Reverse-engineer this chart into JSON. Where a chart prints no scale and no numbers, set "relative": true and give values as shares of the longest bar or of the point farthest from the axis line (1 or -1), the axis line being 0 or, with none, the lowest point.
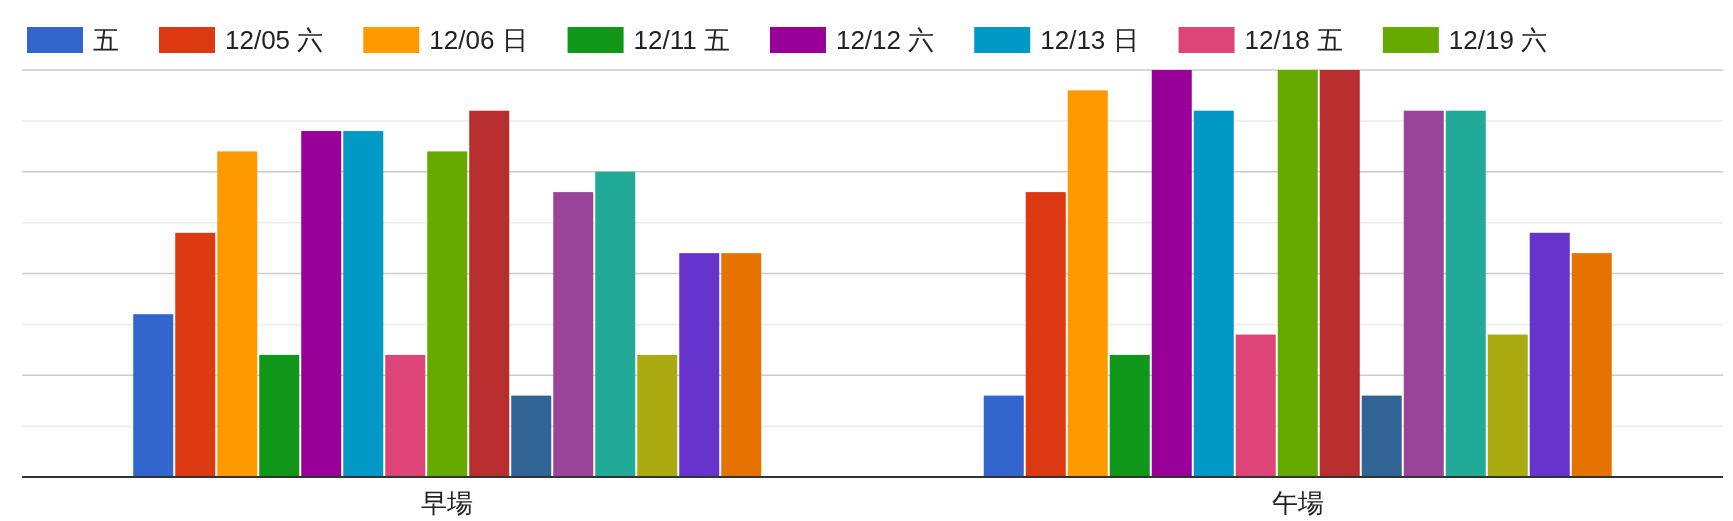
{
  "chart_data": {
    "type": "bar",
    "relative": true,
    "grid": true,
    "legend": "top",
    "categories": [
      "早場",
      "午場"
    ],
    "series": [
      {
        "name": "五",
        "color": "#3366cc",
        "values": [
          0.4,
          0.2
        ]
      },
      {
        "name": "12/05 六",
        "color": "#dc3912",
        "values": [
          0.6,
          0.7
        ]
      },
      {
        "name": "12/06 日",
        "color": "#ff9900",
        "values": [
          0.8,
          0.95
        ]
      },
      {
        "name": "12/11 五",
        "color": "#109618",
        "values": [
          0.3,
          0.3
        ]
      },
      {
        "name": "12/12 六",
        "color": "#990099",
        "values": [
          0.85,
          1
        ]
      },
      {
        "name": "12/13 日",
        "color": "#0099c6",
        "values": [
          0.85,
          0.9
        ]
      },
      {
        "name": "12/18 五",
        "color": "#dd4477",
        "values": [
          0.3,
          0.35
        ]
      },
      {
        "name": "12/19 六",
        "color": "#66aa00",
        "values": [
          0.8,
          1
        ]
      },
      {
        "color": "#b82e2e",
        "values": [
          0.9,
          1
        ]
      },
      {
        "color": "#316395",
        "values": [
          0.2,
          0.2
        ]
      },
      {
        "color": "#994499",
        "values": [
          0.7,
          0.9
        ]
      },
      {
        "color": "#22aa99",
        "values": [
          0.75,
          0.9
        ]
      },
      {
        "color": "#aaaa11",
        "values": [
          0.3,
          0.35
        ]
      },
      {
        "color": "#6633cc",
        "values": [
          0.55,
          0.6
        ]
      },
      {
        "color": "#e67300",
        "values": [
          0.55,
          0.55
        ]
      }
    ]
  }
}
